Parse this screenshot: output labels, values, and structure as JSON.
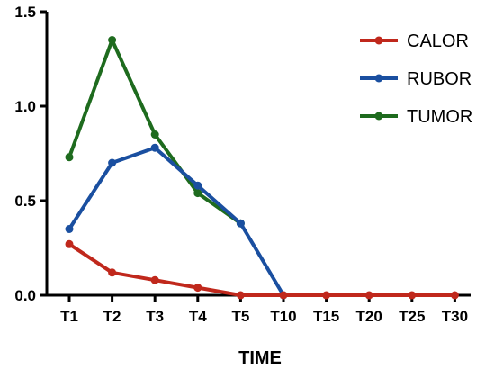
{
  "chart_data": {
    "type": "line",
    "title": "",
    "xlabel": "TIME",
    "ylabel": "",
    "categories": [
      "T1",
      "T2",
      "T3",
      "T4",
      "T5",
      "T10",
      "T15",
      "T20",
      "T25",
      "T30"
    ],
    "ylim": [
      0,
      1.5
    ],
    "yticks": [
      "0.0",
      "0.5",
      "1.0",
      "1.5"
    ],
    "grid": false,
    "legend_position": "top-right",
    "series": [
      {
        "name": "CALOR",
        "color": "#c0281c",
        "values": [
          0.27,
          0.12,
          0.08,
          0.04,
          0.0,
          0.0,
          0.0,
          0.0,
          0.0,
          0.0
        ]
      },
      {
        "name": "RUBOR",
        "color": "#1a4fa0",
        "values": [
          0.35,
          0.7,
          0.78,
          0.58,
          0.38,
          0.0,
          null,
          null,
          null,
          null
        ]
      },
      {
        "name": "TUMOR",
        "color": "#1e6b1e",
        "values": [
          0.73,
          1.35,
          0.85,
          0.54,
          0.38,
          null,
          null,
          null,
          null,
          null
        ]
      }
    ]
  }
}
